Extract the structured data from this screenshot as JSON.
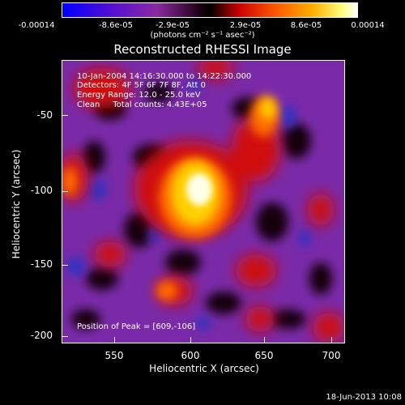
{
  "colorbar": {
    "tick_labels": [
      "-0.00014",
      "-8.6e-05",
      "-2.9e-05",
      "2.9e-05",
      "8.6e-05",
      "0.00014"
    ],
    "units_text": "(photons cm⁻² s⁻¹ asec⁻²)",
    "colors": [
      "#0000ff",
      "#6600cc",
      "#9a1a9a",
      "#000000",
      "#cc0000",
      "#ff6600",
      "#ffcc00",
      "#ffffff"
    ]
  },
  "image": {
    "title": "Reconstructed RHESSI Image",
    "overlay_lines": [
      "10-Jan-2004 14:16:30.000 to 14:22:30.000",
      "Detectors: 4F 5F 6F 7F 8F, Att 0",
      "Energy Range: 12.0 - 25.0 keV",
      "Clean     Total counts: 4.43E+05"
    ],
    "peak_text": "Position of Peak = [609,-106]"
  },
  "axes": {
    "xlabel": "Heliocentric X (arcsec)",
    "ylabel": "Heliocentric Y (arcsec)",
    "xticks": [
      "550",
      "600",
      "650",
      "700"
    ],
    "yticks": [
      "-50",
      "-100",
      "-150",
      "-200"
    ]
  },
  "footer": {
    "date_text": "18-Jun-2013 10:08"
  }
}
